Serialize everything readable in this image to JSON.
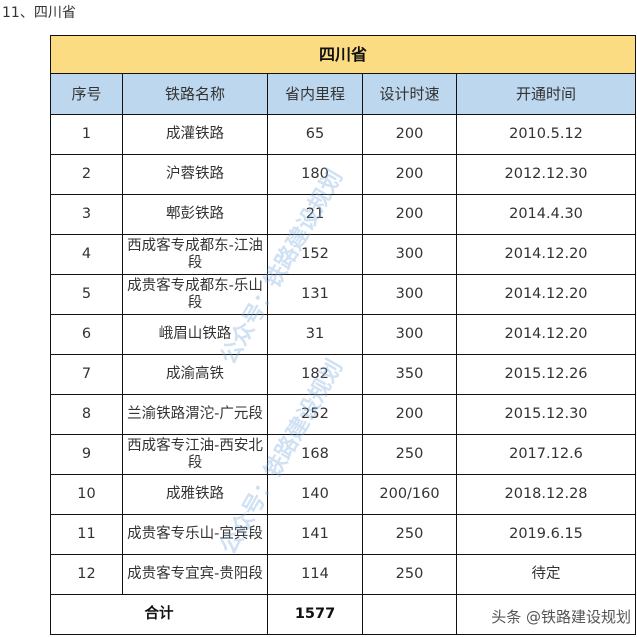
{
  "heading": "11、四川省",
  "table": {
    "title": "四川省",
    "columns": [
      "序号",
      "铁路名称",
      "省内里程",
      "设计时速",
      "开通时间"
    ],
    "rows": [
      [
        "1",
        "成灌铁路",
        "65",
        "200",
        "2010.5.12"
      ],
      [
        "2",
        "沪蓉铁路",
        "180",
        "200",
        "2012.12.30"
      ],
      [
        "3",
        "郫彭铁路",
        "21",
        "200",
        "2014.4.30"
      ],
      [
        "4",
        "西成客专成都东-江油段",
        "152",
        "300",
        "2014.12.20"
      ],
      [
        "5",
        "成贵客专成都东-乐山段",
        "131",
        "300",
        "2014.12.20"
      ],
      [
        "6",
        "峨眉山铁路",
        "31",
        "300",
        "2014.12.20"
      ],
      [
        "7",
        "成渝高铁",
        "182",
        "350",
        "2015.12.26"
      ],
      [
        "8",
        "兰渝铁路渭沱-广元段",
        "252",
        "200",
        "2015.12.30"
      ],
      [
        "9",
        "西成客专江油-西安北段",
        "168",
        "250",
        "2017.12.6"
      ],
      [
        "10",
        "成雅铁路",
        "140",
        "200/160",
        "2018.12.28"
      ],
      [
        "11",
        "成贵客专乐山-宜宾段",
        "141",
        "250",
        "2019.6.15"
      ],
      [
        "12",
        "成贵客专宜宾-贵阳段",
        "114",
        "250",
        "待定"
      ]
    ],
    "total_label": "合计",
    "total_mileage": "1577"
  },
  "watermark": "公众号：铁路建设规划",
  "credit": "头条 @铁路建设规划",
  "colors": {
    "title_bg": "#fbdc82",
    "header_bg": "#bdd7ee"
  }
}
